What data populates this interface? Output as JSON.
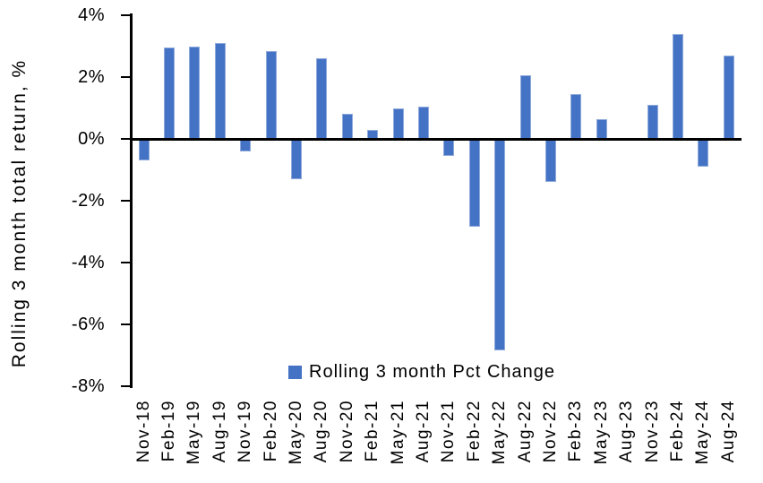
{
  "chart_data": {
    "type": "bar",
    "title": "",
    "xlabel": "",
    "ylabel": "Rolling 3 month total return, %",
    "categories": [
      "Nov-18",
      "Feb-19",
      "May-19",
      "Aug-19",
      "Nov-19",
      "Feb-20",
      "May-20",
      "Aug-20",
      "Nov-20",
      "Feb-21",
      "May-21",
      "Aug-21",
      "Nov-21",
      "Feb-22",
      "May-22",
      "Aug-22",
      "Nov-22",
      "Feb-23",
      "May-23",
      "Aug-23",
      "Nov-23",
      "Feb-24",
      "May-24",
      "Aug-24"
    ],
    "values": [
      -0.7,
      2.95,
      3.0,
      3.1,
      -0.4,
      2.85,
      -1.3,
      2.6,
      0.8,
      0.3,
      1.0,
      1.05,
      -0.55,
      -2.85,
      -6.85,
      2.05,
      -1.4,
      1.45,
      0.65,
      0.0,
      1.1,
      3.4,
      -0.9,
      2.7
    ],
    "ylim": [
      -8,
      4
    ],
    "yticks": {
      "values": [
        4,
        2,
        0,
        -2,
        -4,
        -6,
        -8
      ],
      "labels": [
        "4%",
        "2%",
        "0%",
        "-2%",
        "-4%",
        "-6%",
        "-8%"
      ]
    },
    "grid": false,
    "legend": {
      "position": "bottom-center",
      "entries": [
        {
          "label": "Rolling 3 month Pct Change",
          "color": "#4472C4"
        }
      ]
    },
    "colors": {
      "bar_fill": "#4472C4",
      "bar_border": "#8FAADC",
      "axis": "#000000",
      "text": "#000000",
      "background": "#FFFFFF"
    }
  }
}
